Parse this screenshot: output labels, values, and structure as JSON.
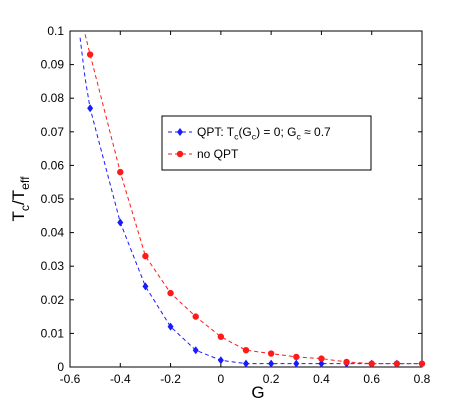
{
  "chart_data": {
    "type": "line",
    "xlabel": "G",
    "ylabel": "T_c/T_eff",
    "xlim": [
      -0.6,
      0.8
    ],
    "ylim": [
      0,
      0.1
    ],
    "x_ticks": [
      -0.6,
      -0.4,
      -0.2,
      0,
      0.2,
      0.4,
      0.6,
      0.8
    ],
    "x_tick_labels": [
      "-0.6",
      "-0.4",
      "-0.2",
      "0",
      "0.2",
      "0.4",
      "0.6",
      "0.8"
    ],
    "y_ticks": [
      0,
      0.01,
      0.02,
      0.03,
      0.04,
      0.05,
      0.06,
      0.07,
      0.08,
      0.09,
      0.1
    ],
    "y_tick_labels": [
      "0",
      "0.01",
      "0.02",
      "0.03",
      "0.04",
      "0.05",
      "0.06",
      "0.07",
      "0.08",
      "0.09",
      "0.1"
    ],
    "grid": false,
    "legend_position": "upper-right",
    "series": [
      {
        "name": "QPT: T_c(G_c) = 0; G_c ≈ 0.7",
        "color": "#1a1aff",
        "marker": "diamond",
        "line_style": "dashed",
        "x": [
          -0.52,
          -0.4,
          -0.3,
          -0.2,
          -0.1,
          0.0,
          0.1,
          0.2,
          0.3,
          0.4,
          0.5,
          0.6,
          0.7,
          0.8
        ],
        "y": [
          0.077,
          0.043,
          0.024,
          0.012,
          0.005,
          0.002,
          0.001,
          0.001,
          0.001,
          0.001,
          0.001,
          0.001,
          0.001,
          0.001
        ],
        "curve_x": [
          -0.56,
          -0.54
        ],
        "curve_y": [
          0.098,
          0.086
        ]
      },
      {
        "name": "no QPT",
        "color": "#ff1a1a",
        "marker": "circle",
        "line_style": "dashed",
        "x": [
          -0.52,
          -0.4,
          -0.3,
          -0.2,
          -0.1,
          0.0,
          0.1,
          0.2,
          0.3,
          0.4,
          0.5,
          0.6,
          0.7,
          0.8
        ],
        "y": [
          0.093,
          0.058,
          0.033,
          0.022,
          0.015,
          0.009,
          0.005,
          0.004,
          0.003,
          0.0025,
          0.0015,
          0.001,
          0.001,
          0.001
        ],
        "curve_x": [
          -0.54
        ],
        "curve_y": [
          0.099
        ]
      }
    ]
  }
}
